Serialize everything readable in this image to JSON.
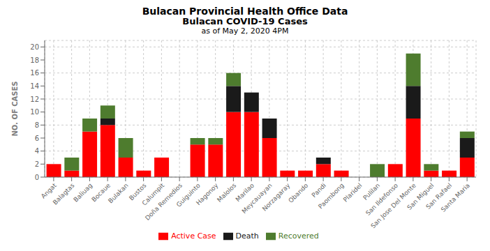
{
  "chart_data": {
    "type": "bar",
    "title": "Bulacan Provincial Health Office Data",
    "subtitle": "Bulacan COVID-19 Cases",
    "annotations": [
      "as of May 2, 2020 4PM"
    ],
    "ylabel": "NO. OF CASES",
    "categories": [
      "Angat",
      "Balagtas",
      "Baliuag",
      "Bocaue",
      "Bulakan",
      "Bustos",
      "Calumpit",
      "Doña Remedios",
      "Guiguinto",
      "Hagonoy",
      "Malolos",
      "Marilao",
      "Meycauayan",
      "Norzagaray",
      "Obando",
      "Pandi",
      "Paombong",
      "Plaridel",
      "Pulilan",
      "San Ildefonso",
      "San Jose Del Monte",
      "San Miguel",
      "San Rafael",
      "Santa Maria"
    ],
    "series": [
      {
        "name": "Active Case",
        "color": "#ff0000",
        "values": [
          2,
          1,
          7,
          8,
          3,
          1,
          3,
          0,
          5,
          5,
          10,
          10,
          6,
          1,
          1,
          2,
          1,
          0,
          0,
          2,
          9,
          1,
          1,
          3
        ]
      },
      {
        "name": "Death",
        "color": "#1a1a1a",
        "values": [
          0,
          0,
          0,
          1,
          0,
          0,
          0,
          0,
          0,
          0,
          4,
          3,
          3,
          0,
          0,
          1,
          0,
          0,
          0,
          0,
          5,
          0,
          0,
          3
        ]
      },
      {
        "name": "Recovered",
        "color": "#4e7c2e",
        "values": [
          0,
          2,
          2,
          2,
          3,
          0,
          0,
          0,
          1,
          1,
          2,
          0,
          0,
          0,
          0,
          0,
          0,
          0,
          2,
          0,
          5,
          1,
          0,
          1
        ]
      }
    ],
    "ylim": [
      0,
      21
    ],
    "yticks": [
      0,
      2,
      4,
      6,
      8,
      10,
      12,
      14,
      16,
      18,
      20
    ],
    "stacked": true,
    "grid": true,
    "legend": "bottom"
  }
}
